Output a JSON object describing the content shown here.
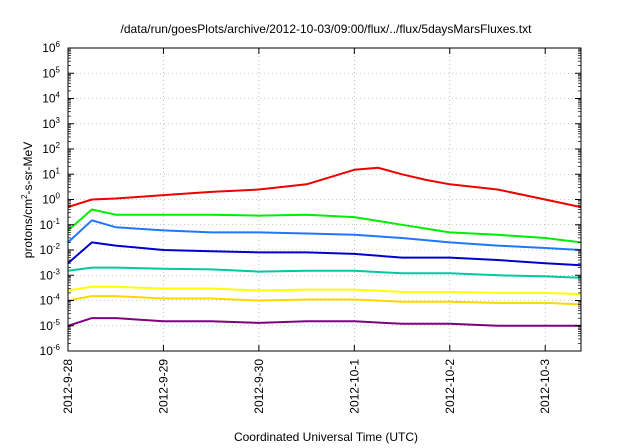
{
  "chart_data": {
    "type": "line",
    "title": "/data/run/goesPlots/archive/2012-10-03/09:00/flux/../flux/5daysMarsFluxes.txt",
    "xlabel": "Coordinated Universal Time (UTC)",
    "ylabel": {
      "pre": "protons/cm",
      "sup": "2",
      "post": "-s-sr-MeV"
    },
    "x_ticks": [
      "2012-9-28",
      "2012-9-29",
      "2012-9-30",
      "2012-10-1",
      "2012-10-2",
      "2012-10-3"
    ],
    "xlim": [
      "2012-09-28T00:00",
      "2012-10-03T09:00"
    ],
    "y_scale": "log",
    "ylim": [
      1e-06,
      1000000.0
    ],
    "y_ticks": [
      {
        "value": 1e-06,
        "base": "10",
        "exp": "-6"
      },
      {
        "value": 1e-05,
        "base": "10",
        "exp": "-5"
      },
      {
        "value": 0.0001,
        "base": "10",
        "exp": "-4"
      },
      {
        "value": 0.001,
        "base": "10",
        "exp": "-3"
      },
      {
        "value": 0.01,
        "base": "10",
        "exp": "-2"
      },
      {
        "value": 0.1,
        "base": "10",
        "exp": "-1"
      },
      {
        "value": 1,
        "base": "10",
        "exp": "0"
      },
      {
        "value": 10,
        "base": "10",
        "exp": "1"
      },
      {
        "value": 100,
        "base": "10",
        "exp": "2"
      },
      {
        "value": 1000,
        "base": "10",
        "exp": "3"
      },
      {
        "value": 10000,
        "base": "10",
        "exp": "4"
      },
      {
        "value": 100000,
        "base": "10",
        "exp": "5"
      },
      {
        "value": 1000000,
        "base": "10",
        "exp": "6"
      }
    ],
    "grid": true,
    "series": [
      {
        "color": "#800080",
        "values": [
          [
            "2012-09-28T00:00",
            1e-05
          ],
          [
            "2012-09-28T06:00",
            2e-05
          ],
          [
            "2012-09-28T12:00",
            2e-05
          ],
          [
            "2012-09-29T00:00",
            1.5e-05
          ],
          [
            "2012-09-29T12:00",
            1.5e-05
          ],
          [
            "2012-09-30T00:00",
            1.3e-05
          ],
          [
            "2012-09-30T12:00",
            1.5e-05
          ],
          [
            "2012-10-01T00:00",
            1.5e-05
          ],
          [
            "2012-10-01T12:00",
            1.2e-05
          ],
          [
            "2012-10-02T00:00",
            1.2e-05
          ],
          [
            "2012-10-02T12:00",
            1e-05
          ],
          [
            "2012-10-03T00:00",
            1e-05
          ],
          [
            "2012-10-03T09:00",
            1e-05
          ]
        ]
      },
      {
        "color": "#FFD700",
        "values": [
          [
            "2012-09-28T00:00",
            0.0001
          ],
          [
            "2012-09-28T06:00",
            0.00015
          ],
          [
            "2012-09-28T12:00",
            0.00015
          ],
          [
            "2012-09-29T00:00",
            0.00012
          ],
          [
            "2012-09-29T12:00",
            0.00012
          ],
          [
            "2012-09-30T00:00",
            0.0001
          ],
          [
            "2012-09-30T12:00",
            0.00011
          ],
          [
            "2012-10-01T00:00",
            0.00011
          ],
          [
            "2012-10-01T12:00",
            9e-05
          ],
          [
            "2012-10-02T00:00",
            9e-05
          ],
          [
            "2012-10-02T12:00",
            8e-05
          ],
          [
            "2012-10-03T00:00",
            8e-05
          ],
          [
            "2012-10-03T09:00",
            7e-05
          ]
        ]
      },
      {
        "color": "#FFFF00",
        "values": [
          [
            "2012-09-28T00:00",
            0.00025
          ],
          [
            "2012-09-28T06:00",
            0.00035
          ],
          [
            "2012-09-28T12:00",
            0.00035
          ],
          [
            "2012-09-29T00:00",
            0.0003
          ],
          [
            "2012-09-29T12:00",
            0.0003
          ],
          [
            "2012-09-30T00:00",
            0.00025
          ],
          [
            "2012-09-30T12:00",
            0.00027
          ],
          [
            "2012-10-01T00:00",
            0.00027
          ],
          [
            "2012-10-01T12:00",
            0.00022
          ],
          [
            "2012-10-02T00:00",
            0.00022
          ],
          [
            "2012-10-02T12:00",
            0.0002
          ],
          [
            "2012-10-03T00:00",
            0.0002
          ],
          [
            "2012-10-03T09:00",
            0.00018
          ]
        ]
      },
      {
        "color": "#00C8A0",
        "values": [
          [
            "2012-09-28T00:00",
            0.0015
          ],
          [
            "2012-09-28T06:00",
            0.002
          ],
          [
            "2012-09-28T12:00",
            0.002
          ],
          [
            "2012-09-29T00:00",
            0.0018
          ],
          [
            "2012-09-29T12:00",
            0.0017
          ],
          [
            "2012-09-30T00:00",
            0.0014
          ],
          [
            "2012-09-30T12:00",
            0.0015
          ],
          [
            "2012-10-01T00:00",
            0.0015
          ],
          [
            "2012-10-01T12:00",
            0.0012
          ],
          [
            "2012-10-02T00:00",
            0.0012
          ],
          [
            "2012-10-02T12:00",
            0.001
          ],
          [
            "2012-10-03T00:00",
            0.0009
          ],
          [
            "2012-10-03T09:00",
            0.0008
          ]
        ]
      },
      {
        "color": "#0000CC",
        "values": [
          [
            "2012-09-28T00:00",
            0.003
          ],
          [
            "2012-09-28T06:00",
            0.02
          ],
          [
            "2012-09-28T12:00",
            0.015
          ],
          [
            "2012-09-29T00:00",
            0.01
          ],
          [
            "2012-09-29T12:00",
            0.009
          ],
          [
            "2012-09-30T00:00",
            0.008
          ],
          [
            "2012-09-30T12:00",
            0.008
          ],
          [
            "2012-10-01T00:00",
            0.007
          ],
          [
            "2012-10-01T12:00",
            0.005
          ],
          [
            "2012-10-02T00:00",
            0.005
          ],
          [
            "2012-10-02T12:00",
            0.004
          ],
          [
            "2012-10-03T00:00",
            0.003
          ],
          [
            "2012-10-03T09:00",
            0.0025
          ]
        ]
      },
      {
        "color": "#1E78FF",
        "values": [
          [
            "2012-09-28T00:00",
            0.02
          ],
          [
            "2012-09-28T06:00",
            0.15
          ],
          [
            "2012-09-28T12:00",
            0.08
          ],
          [
            "2012-09-29T00:00",
            0.06
          ],
          [
            "2012-09-29T12:00",
            0.05
          ],
          [
            "2012-09-30T00:00",
            0.05
          ],
          [
            "2012-09-30T12:00",
            0.045
          ],
          [
            "2012-10-01T00:00",
            0.04
          ],
          [
            "2012-10-01T12:00",
            0.03
          ],
          [
            "2012-10-02T00:00",
            0.02
          ],
          [
            "2012-10-02T12:00",
            0.015
          ],
          [
            "2012-10-03T00:00",
            0.012
          ],
          [
            "2012-10-03T09:00",
            0.01
          ]
        ]
      },
      {
        "color": "#00EE00",
        "values": [
          [
            "2012-09-28T00:00",
            0.06
          ],
          [
            "2012-09-28T06:00",
            0.4
          ],
          [
            "2012-09-28T12:00",
            0.25
          ],
          [
            "2012-09-29T00:00",
            0.25
          ],
          [
            "2012-09-29T12:00",
            0.25
          ],
          [
            "2012-09-30T00:00",
            0.23
          ],
          [
            "2012-09-30T12:00",
            0.25
          ],
          [
            "2012-10-01T00:00",
            0.2
          ],
          [
            "2012-10-01T12:00",
            0.1
          ],
          [
            "2012-10-02T00:00",
            0.05
          ],
          [
            "2012-10-02T12:00",
            0.04
          ],
          [
            "2012-10-03T00:00",
            0.03
          ],
          [
            "2012-10-03T09:00",
            0.02
          ]
        ]
      },
      {
        "color": "#EE0000",
        "values": [
          [
            "2012-09-28T00:00",
            0.5
          ],
          [
            "2012-09-28T06:00",
            1
          ],
          [
            "2012-09-28T12:00",
            1.1
          ],
          [
            "2012-09-29T00:00",
            1.5
          ],
          [
            "2012-09-29T12:00",
            2
          ],
          [
            "2012-09-30T00:00",
            2.5
          ],
          [
            "2012-09-30T12:00",
            4
          ],
          [
            "2012-10-01T00:00",
            15.0
          ],
          [
            "2012-10-01T06:00",
            18.0
          ],
          [
            "2012-10-01T12:00",
            10.0
          ],
          [
            "2012-10-01T18:00",
            6
          ],
          [
            "2012-10-02T00:00",
            4
          ],
          [
            "2012-10-02T12:00",
            2.5
          ],
          [
            "2012-10-03T00:00",
            1
          ],
          [
            "2012-10-03T09:00",
            0.5
          ]
        ]
      }
    ]
  }
}
